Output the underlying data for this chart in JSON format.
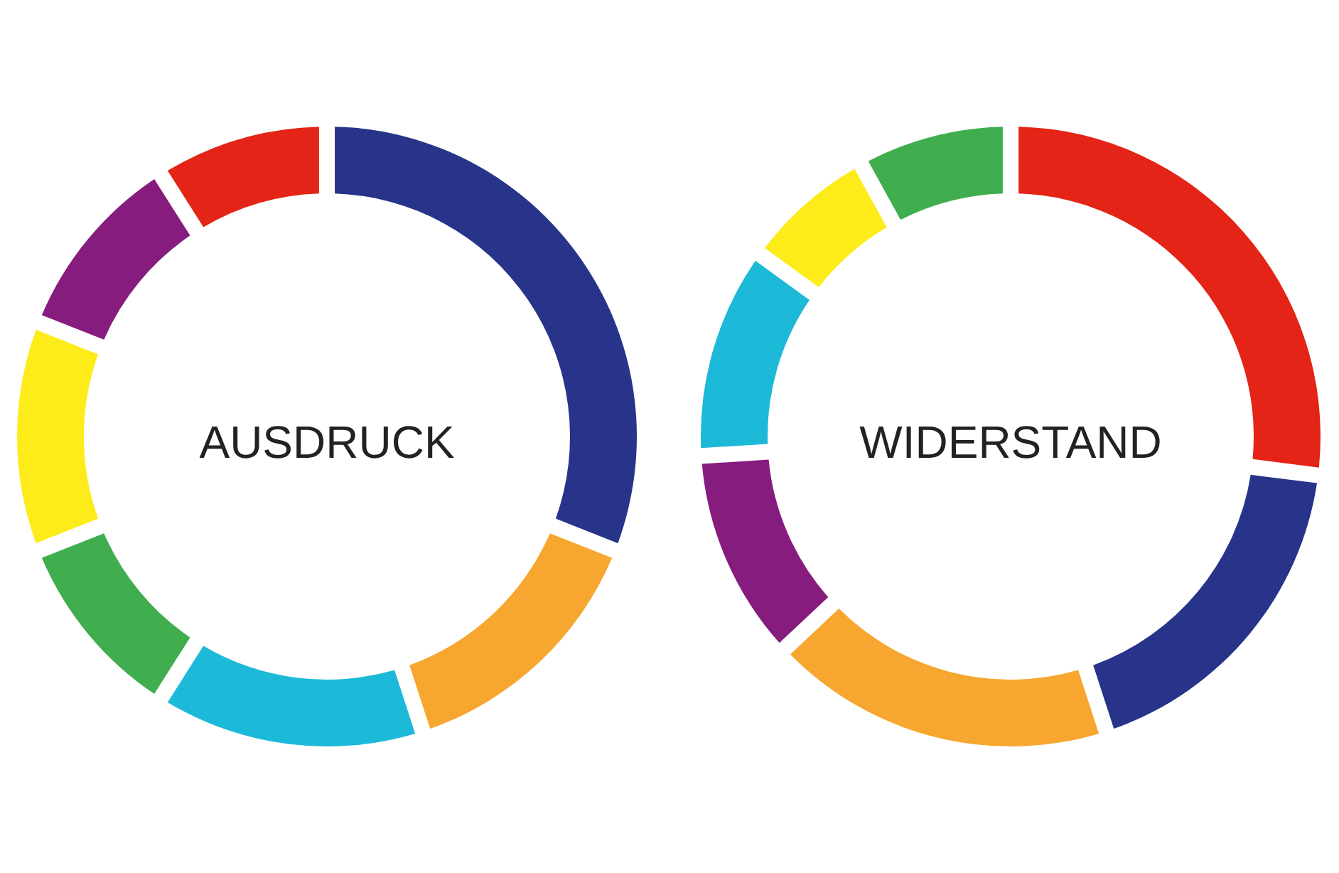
{
  "chart_data": [
    {
      "type": "donut",
      "title": "AUSDRUCK",
      "categories": [
        null,
        null,
        null,
        null,
        null,
        null,
        null
      ],
      "values": [
        31,
        14,
        14,
        10,
        12,
        10,
        9
      ],
      "colors": [
        "#283489",
        "#f7a72f",
        "#1db9d8",
        "#40ad4f",
        "#fdec1a",
        "#861d7e",
        "#e42416"
      ]
    },
    {
      "type": "donut",
      "title": "WIDERSTAND",
      "categories": [
        null,
        null,
        null,
        null,
        null,
        null,
        null
      ],
      "values": [
        27,
        18,
        18,
        11,
        11,
        7,
        8
      ],
      "colors": [
        "#e42416",
        "#283489",
        "#f7a72f",
        "#861d7e",
        "#1db9d8",
        "#fdec1a",
        "#40ad4f"
      ]
    }
  ]
}
